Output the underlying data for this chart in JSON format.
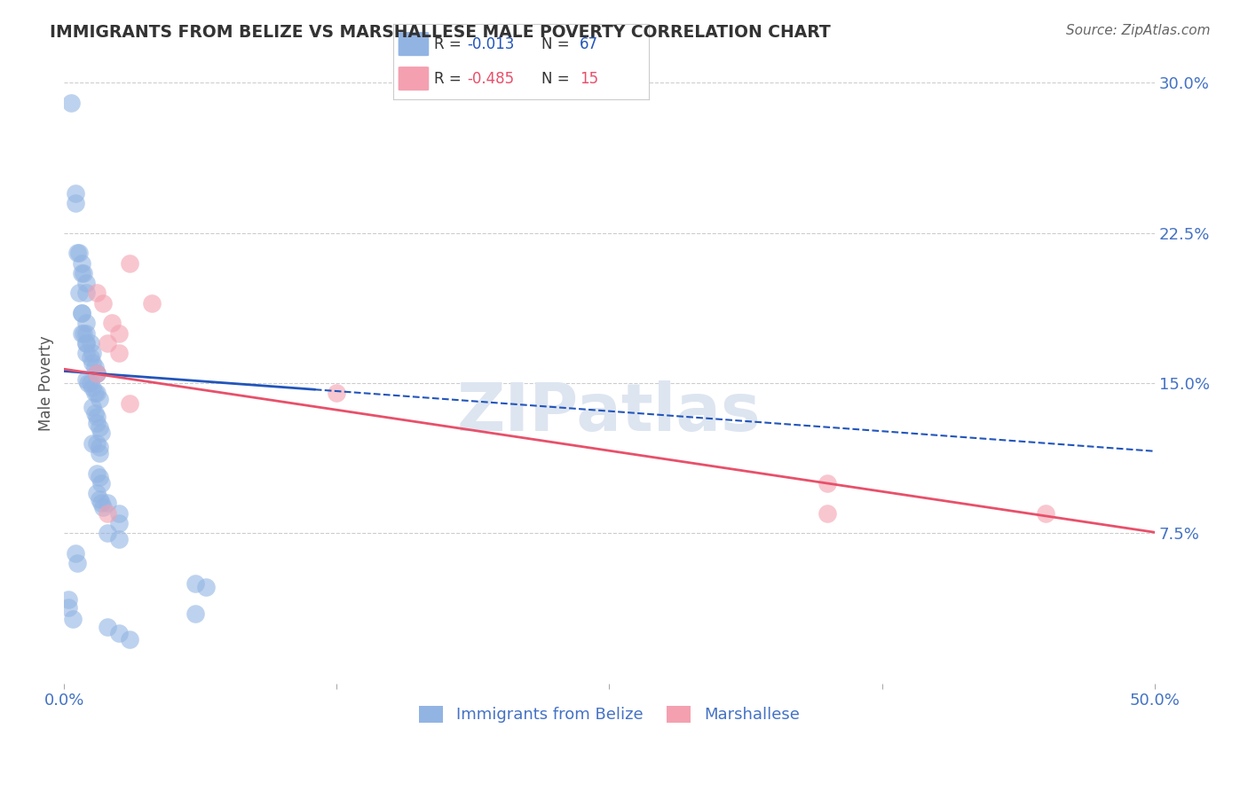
{
  "title": "IMMIGRANTS FROM BELIZE VS MARSHALLESE MALE POVERTY CORRELATION CHART",
  "source": "Source: ZipAtlas.com",
  "ylabel": "Male Poverty",
  "xlim": [
    0.0,
    0.5
  ],
  "ylim": [
    0.0,
    0.3
  ],
  "blue_R": -0.013,
  "blue_N": 67,
  "pink_R": -0.485,
  "pink_N": 15,
  "blue_color": "#92b4e3",
  "pink_color": "#f4a0b0",
  "blue_line_color": "#2255bb",
  "pink_line_color": "#e8506a",
  "blue_label": "Immigrants from Belize",
  "pink_label": "Marshallese",
  "axis_label_color": "#4472c4",
  "watermark": "ZIPatlas",
  "blue_x": [
    0.003,
    0.005,
    0.005,
    0.006,
    0.007,
    0.008,
    0.008,
    0.009,
    0.01,
    0.01,
    0.007,
    0.008,
    0.008,
    0.01,
    0.01,
    0.008,
    0.009,
    0.01,
    0.01,
    0.012,
    0.013,
    0.01,
    0.012,
    0.013,
    0.014,
    0.015,
    0.015,
    0.01,
    0.011,
    0.012,
    0.013,
    0.014,
    0.015,
    0.016,
    0.013,
    0.014,
    0.015,
    0.015,
    0.016,
    0.017,
    0.013,
    0.015,
    0.016,
    0.016,
    0.015,
    0.016,
    0.017,
    0.015,
    0.016,
    0.017,
    0.018,
    0.02,
    0.025,
    0.025,
    0.02,
    0.025,
    0.005,
    0.006,
    0.06,
    0.065,
    0.002,
    0.002,
    0.06,
    0.004,
    0.02,
    0.025,
    0.03
  ],
  "blue_y": [
    0.29,
    0.245,
    0.24,
    0.215,
    0.215,
    0.21,
    0.205,
    0.205,
    0.2,
    0.195,
    0.195,
    0.185,
    0.185,
    0.18,
    0.175,
    0.175,
    0.175,
    0.17,
    0.17,
    0.17,
    0.165,
    0.165,
    0.163,
    0.16,
    0.158,
    0.155,
    0.155,
    0.152,
    0.15,
    0.15,
    0.148,
    0.145,
    0.145,
    0.142,
    0.138,
    0.135,
    0.133,
    0.13,
    0.128,
    0.125,
    0.12,
    0.12,
    0.118,
    0.115,
    0.105,
    0.103,
    0.1,
    0.095,
    0.092,
    0.09,
    0.088,
    0.09,
    0.085,
    0.08,
    0.075,
    0.072,
    0.065,
    0.06,
    0.05,
    0.048,
    0.042,
    0.038,
    0.035,
    0.032,
    0.028,
    0.025,
    0.022
  ],
  "pink_x": [
    0.015,
    0.018,
    0.022,
    0.025,
    0.03,
    0.025,
    0.03,
    0.125,
    0.04,
    0.02,
    0.015,
    0.35,
    0.35,
    0.45,
    0.02
  ],
  "pink_y": [
    0.195,
    0.19,
    0.18,
    0.175,
    0.21,
    0.165,
    0.14,
    0.145,
    0.19,
    0.17,
    0.155,
    0.085,
    0.1,
    0.085,
    0.085
  ]
}
